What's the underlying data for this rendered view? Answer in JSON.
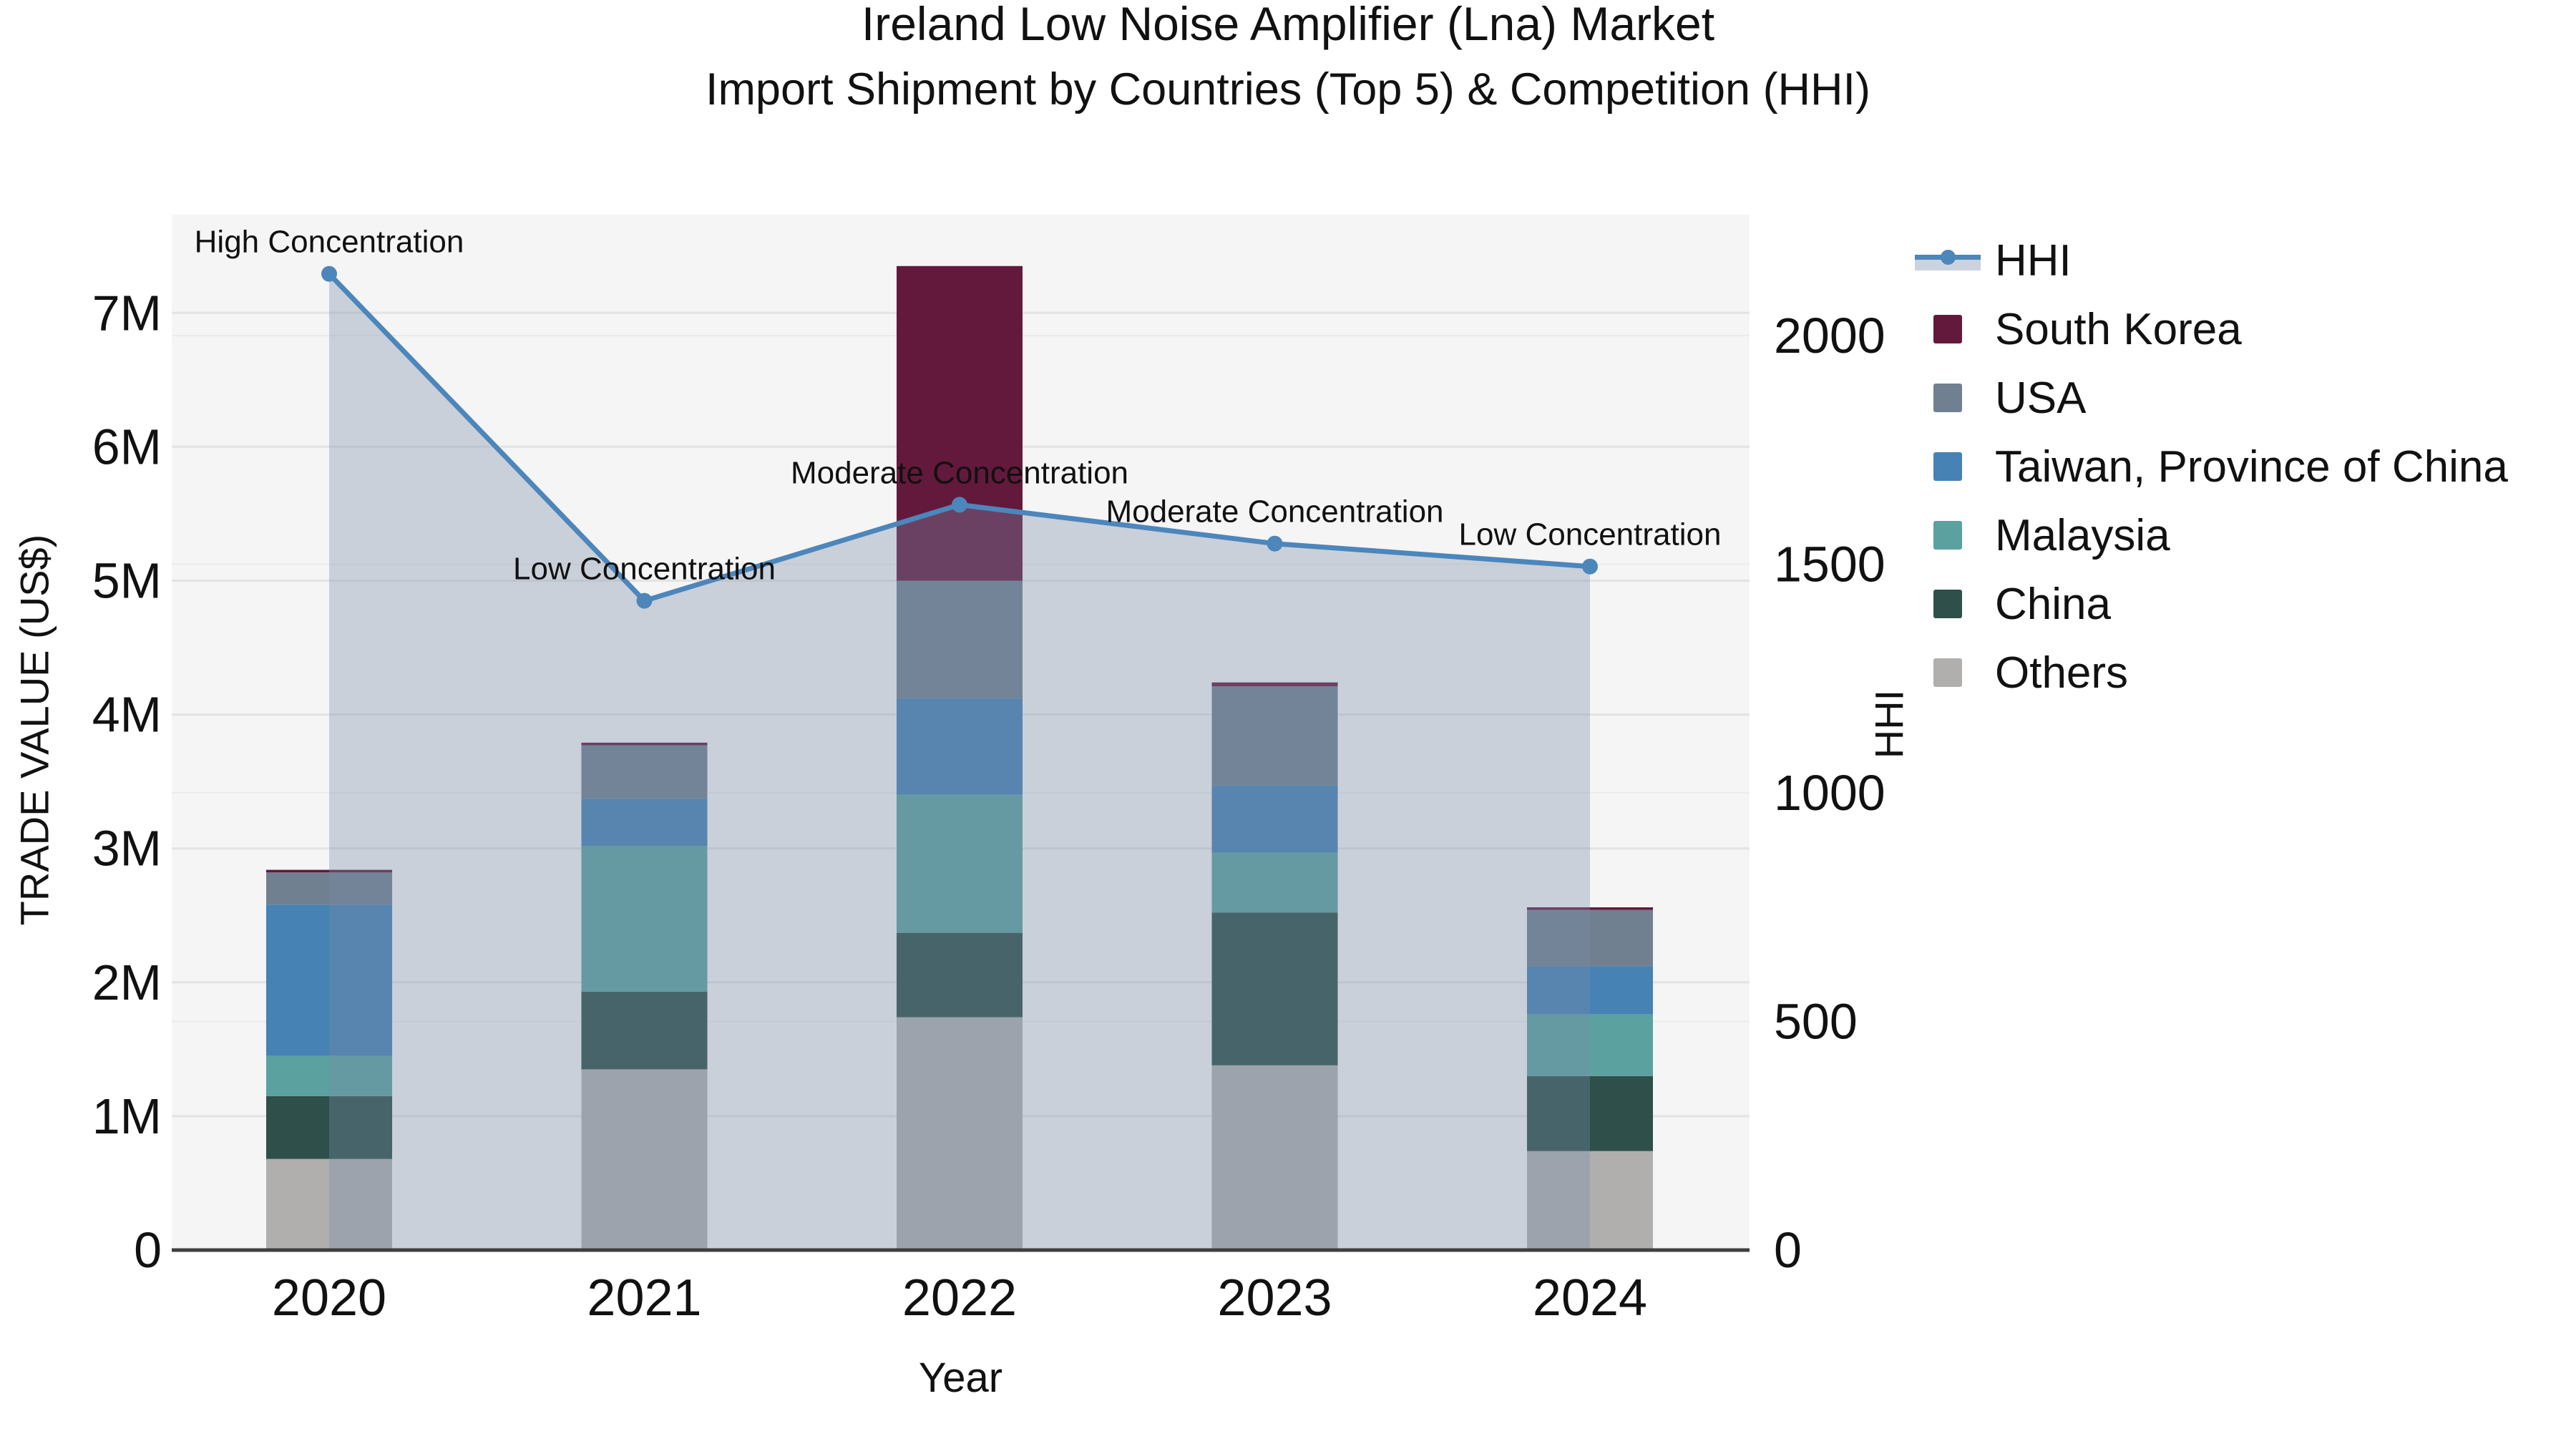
{
  "title": {
    "line1": "Ireland Low Noise Amplifier (Lna) Market",
    "line2": "Import Shipment by Countries (Top 5) & Competition (HHI)"
  },
  "chart_data": {
    "type": "combo: stacked bar + line (dual axis)",
    "categories": [
      "2020",
      "2021",
      "2022",
      "2023",
      "2024"
    ],
    "bar_unit": "millions US$",
    "bar_series": [
      {
        "name": "Others",
        "color": "#B0AFAE",
        "values": [
          0.68,
          1.35,
          1.74,
          1.38,
          0.74
        ]
      },
      {
        "name": "China",
        "color": "#2F4F4A",
        "values": [
          0.47,
          0.58,
          0.63,
          1.14,
          0.56
        ]
      },
      {
        "name": "Malaysia",
        "color": "#5BA1A0",
        "values": [
          0.3,
          1.09,
          1.03,
          0.45,
          0.46
        ]
      },
      {
        "name": "Taiwan, Province of China",
        "color": "#4682B4",
        "values": [
          1.13,
          0.35,
          0.72,
          0.5,
          0.36
        ]
      },
      {
        "name": "USA",
        "color": "#708090",
        "values": [
          0.24,
          0.4,
          0.88,
          0.74,
          0.42
        ]
      },
      {
        "name": "South Korea",
        "color": "#63193C",
        "values": [
          0.02,
          0.02,
          2.35,
          0.03,
          0.02
        ]
      }
    ],
    "bar_totals": [
      2.84,
      3.79,
      7.35,
      4.24,
      2.56
    ],
    "line_series": {
      "name": "HHI",
      "color": "#4C86BB",
      "area_fill": "rgba(120,140,170,0.35)",
      "values": [
        2135,
        1420,
        1630,
        1545,
        1495
      ]
    },
    "annotations": [
      "High Concentration",
      "Low Concentration",
      "Moderate Concentration",
      "Moderate Concentration",
      "Low Concentration"
    ],
    "y_left": {
      "title": "TRADE VALUE (US$)",
      "ticks": [
        "0",
        "1M",
        "2M",
        "3M",
        "4M",
        "5M",
        "6M",
        "7M"
      ],
      "tick_values": [
        0,
        1,
        2,
        3,
        4,
        5,
        6,
        7
      ],
      "range": [
        0,
        7.73
      ]
    },
    "y_right": {
      "title": "HHI",
      "ticks": [
        "0",
        "500",
        "1000",
        "1500",
        "2000"
      ],
      "tick_values": [
        0,
        500,
        1000,
        1500,
        2000
      ],
      "range": [
        0,
        2264
      ]
    },
    "x_axis": {
      "title": "Year"
    },
    "plot_bg": "#f5f5f5",
    "grid_color_left": "#e3e3e3",
    "grid_color_right": "#ebebeb",
    "axisline_color": "#3f3f3f",
    "legend_position": "right"
  },
  "legend": {
    "items": [
      {
        "label": "HHI",
        "type": "line",
        "color": "#4C86BB",
        "band": "#CBD3DF"
      },
      {
        "label": "South Korea",
        "type": "bar",
        "color": "#63193C"
      },
      {
        "label": "USA",
        "type": "bar",
        "color": "#708090"
      },
      {
        "label": "Taiwan, Province of China",
        "type": "bar",
        "color": "#4682B4"
      },
      {
        "label": "Malaysia",
        "type": "bar",
        "color": "#5BA1A0"
      },
      {
        "label": "China",
        "type": "bar",
        "color": "#2F4F4A"
      },
      {
        "label": "Others",
        "type": "bar",
        "color": "#B0AFAE"
      }
    ]
  }
}
